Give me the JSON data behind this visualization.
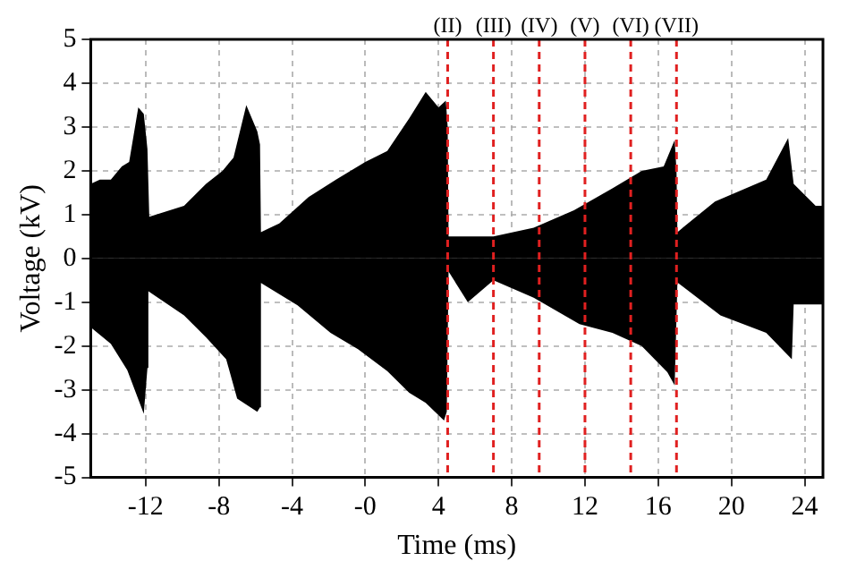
{
  "chart_data": {
    "type": "area",
    "xlabel": "Time (ms)",
    "ylabel": "Voltage (kV)",
    "xlim": [
      -15,
      25
    ],
    "xticks": [
      -12,
      -8,
      -4,
      {
        "value": 0,
        "label": "-0"
      },
      4,
      8,
      12,
      16,
      20,
      24
    ],
    "ylim": [
      -5,
      5
    ],
    "yticks": [
      -5,
      -4,
      -3,
      -2,
      -1,
      0,
      1,
      2,
      3,
      4,
      5
    ],
    "grid": true,
    "series": [
      {
        "color": "#000000",
        "x": [
          -15,
          -14.5,
          -13.9,
          -13.3,
          -12.9,
          -12.4,
          -12.1,
          -11.9,
          -11.8,
          -9.9,
          -8.7,
          -7.8,
          -7.2,
          -6.5,
          -5.9,
          -5.75,
          -5.7,
          -4.7,
          -3.1,
          -1.6,
          0,
          1.2,
          2.4,
          3.3,
          4.0,
          4.4,
          4.5,
          4.55,
          7,
          9.2,
          11.4,
          13.5,
          15.1,
          16.3,
          16.9,
          17,
          17.05,
          19.1,
          21.9,
          23.1,
          23.4,
          24.6,
          25
        ],
        "values": [
          1.7,
          1.8,
          1.8,
          2.1,
          2.2,
          3.45,
          3.3,
          2.5,
          0.95,
          1.2,
          1.7,
          2.0,
          2.3,
          3.5,
          2.9,
          2.6,
          0.6,
          0.8,
          1.4,
          1.8,
          2.2,
          2.45,
          3.2,
          3.8,
          3.45,
          3.6,
          3.0,
          0.5,
          0.5,
          0.7,
          1.1,
          1.6,
          2.0,
          2.1,
          2.7,
          2.0,
          0.6,
          1.3,
          1.8,
          2.75,
          1.7,
          1.2,
          1.2
        ]
      },
      {
        "color": "#000000",
        "x": [
          -15,
          -13.9,
          -13.0,
          -12.1,
          -11.9,
          -11.85,
          -9.9,
          -8.7,
          -7.6,
          -7.0,
          -5.9,
          -5.75,
          -5.7,
          -3.7,
          -1.9,
          -0.4,
          1.2,
          2.4,
          3.3,
          4.3,
          4.45,
          4.55,
          5.6,
          7.0,
          9.2,
          11.7,
          13.5,
          15.1,
          16.5,
          16.9,
          17.05,
          19.4,
          21.9,
          23.3,
          23.4,
          24.6,
          25
        ],
        "values": [
          -1.57,
          -1.95,
          -2.55,
          -3.55,
          -2.5,
          -0.75,
          -1.3,
          -1.8,
          -2.3,
          -3.2,
          -3.5,
          -3.4,
          -0.56,
          -1.07,
          -1.7,
          -2.07,
          -2.57,
          -3.07,
          -3.3,
          -3.7,
          -3.5,
          -0.3,
          -1.0,
          -0.5,
          -0.9,
          -1.5,
          -1.7,
          -2.0,
          -2.6,
          -2.9,
          -0.55,
          -1.3,
          -1.7,
          -2.3,
          -1.05,
          -1.05,
          -1.05
        ]
      }
    ],
    "ref_lines": [
      {
        "axis": "x",
        "value": 4.5,
        "label": "(II)",
        "color": "#e02020",
        "line_style": "dashed"
      },
      {
        "axis": "x",
        "value": 7.0,
        "label": "(III)",
        "color": "#e02020",
        "line_style": "dashed"
      },
      {
        "axis": "x",
        "value": 9.5,
        "label": "(IV)",
        "color": "#e02020",
        "line_style": "dashed"
      },
      {
        "axis": "x",
        "value": 12.0,
        "label": "(V)",
        "color": "#e02020",
        "line_style": "dashed"
      },
      {
        "axis": "x",
        "value": 14.5,
        "label": "(VI)",
        "color": "#e02020",
        "line_style": "dashed"
      },
      {
        "axis": "x",
        "value": 17.0,
        "label": "(VII)",
        "color": "#e02020",
        "line_style": "dashed"
      }
    ]
  }
}
